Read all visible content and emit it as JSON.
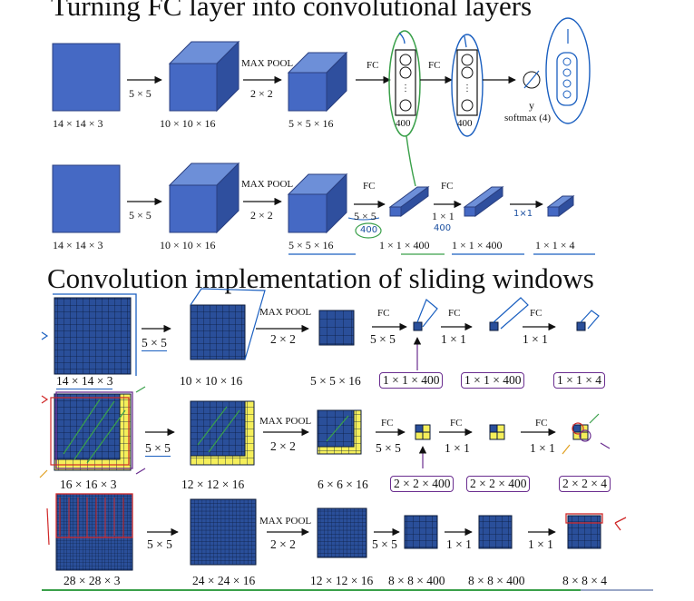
{
  "titles": {
    "top": "Turning FC layer into convolutional layers",
    "bottom": "Convolution implementation of sliding windows"
  },
  "diagram1": {
    "labels": [
      "14 × 14 × 3",
      "10 × 10 × 16",
      "5 × 5 × 16"
    ],
    "conv": "5 × 5",
    "maxpool": "MAX POOL",
    "pool": "2 × 2",
    "fc1": "FC",
    "fc2": "FC",
    "n1": "400",
    "n2": "400",
    "y": "y",
    "softmax": "softmax (4)"
  },
  "diagram2": {
    "labels": [
      "14 × 14 × 3",
      "10 × 10 × 16",
      "5 × 5 × 16",
      "1 × 1 × 400",
      "1 × 1 × 400",
      "1 × 1 × 4"
    ],
    "conv": "5 × 5",
    "maxpool": "MAX POOL",
    "pool": "2 × 2",
    "fc1": "FC",
    "fc1_k": "5 × 5",
    "fc2": "FC",
    "fc2_k": "1 × 1",
    "hand_a": "400",
    "hand_b": "400",
    "hand_c": "1×1"
  },
  "row1": {
    "labels": [
      "14 × 14 × 3",
      "10 × 10 × 16",
      "5 × 5 × 16",
      "1 × 1 × 400",
      "1 × 1 × 400",
      "1 × 1 × 4"
    ],
    "conv": "5 × 5",
    "maxpool": "MAX POOL",
    "pool": "2 × 2",
    "fc": "FC",
    "k5": "5 × 5",
    "k1a": "1 × 1",
    "k1b": "1 × 1"
  },
  "row2": {
    "labels": [
      "16 × 16 × 3",
      "12 × 12 × 16",
      "6 × 6 × 16",
      "2 × 2 × 400",
      "2 × 2 × 400",
      "2 × 2 × 4"
    ],
    "conv": "5 × 5",
    "maxpool": "MAX POOL",
    "pool": "2 × 2",
    "fc": "FC",
    "k5": "5 × 5",
    "k1a": "1 × 1",
    "k1b": "1 × 1"
  },
  "row3": {
    "labels": [
      "28 × 28 × 3",
      "24 × 24 × 16",
      "12 × 12 × 16",
      "8 × 8 × 400",
      "8 × 8 × 400",
      "8 × 8 × 4"
    ],
    "conv": "5 × 5",
    "maxpool": "MAX POOL",
    "pool": "2 × 2",
    "k5": "5 × 5",
    "k1a": "1 × 1",
    "k1b": "1 × 1"
  },
  "colors": {
    "cube_front": "#4569c4",
    "cube_top": "#6d8fd8",
    "cube_side": "#2f4f9e",
    "grid_fill": "#2a4f9a",
    "grid_line": "#0a1a3a",
    "highlight": "#f5ef5a",
    "ink_blue": "#1a5fc0",
    "ink_green": "#3aa04a",
    "ink_purple": "#6a2d8f",
    "ink_red": "#d02828"
  }
}
